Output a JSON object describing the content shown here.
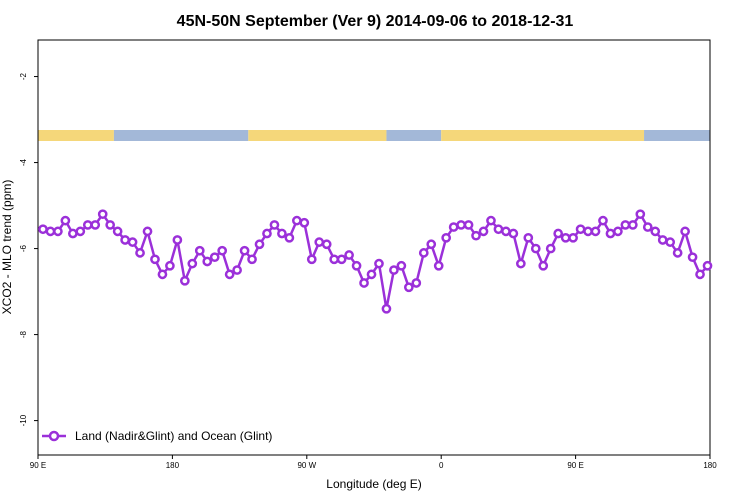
{
  "chart_data": {
    "type": "line",
    "title": "45N-50N September (Ver 9)   2014-09-06 to 2018-12-31",
    "xlabel": "Longitude (deg E)",
    "ylabel": "XCO2 - MLO trend (ppm)",
    "xlim": [
      -90,
      180
    ],
    "ylim": [
      -10.8,
      -1.15
    ],
    "x_ticks": [
      {
        "value": -90,
        "label": "90 E"
      },
      {
        "value": -36,
        "label": "180"
      },
      {
        "value": 18,
        "label": "90 W"
      },
      {
        "value": 72,
        "label": "0"
      },
      {
        "value": 126,
        "label": "90 E"
      },
      {
        "value": 180,
        "label": "180"
      }
    ],
    "y_ticks": [
      -2,
      -4,
      -6,
      -8,
      -10
    ],
    "legend": {
      "position": "bottom-left"
    },
    "grid": false,
    "surface_band": {
      "land_color": "#f5d77a",
      "ocean_color": "#a3b8d8",
      "segments": [
        {
          "type": "land",
          "x0": -90,
          "x1": -59.5
        },
        {
          "type": "ocean",
          "x0": -59.5,
          "x1": -5.5
        },
        {
          "type": "land",
          "x0": -5.5,
          "x1": 50
        },
        {
          "type": "ocean",
          "x0": 50,
          "x1": 72
        },
        {
          "type": "land",
          "x0": 72,
          "x1": 153.5
        },
        {
          "type": "ocean",
          "x0": 153.5,
          "x1": 180
        }
      ]
    },
    "series": [
      {
        "name": "Land (Nadir&Glint) and Ocean (Glint)",
        "color": "#9b30d9",
        "x": [
          -88,
          -85,
          -82,
          -79,
          -76,
          -73,
          -70,
          -67,
          -64,
          -61,
          -58,
          -55,
          -52,
          -49,
          -46,
          -43,
          -40,
          -37,
          -34,
          -31,
          -28,
          -25,
          -22,
          -19,
          -16,
          -13,
          -10,
          -7,
          -4,
          -1,
          2,
          5,
          8,
          11,
          14,
          17,
          20,
          23,
          26,
          29,
          32,
          35,
          38,
          41,
          44,
          47,
          50,
          53,
          56,
          59,
          62,
          65,
          68,
          71,
          74,
          77,
          80,
          83,
          86,
          89,
          92,
          95,
          98,
          101,
          104,
          107,
          110,
          113,
          116,
          119,
          122,
          125,
          128,
          131,
          134,
          137,
          140,
          143,
          146,
          149,
          152,
          155,
          158,
          161,
          164,
          167,
          170,
          173,
          176,
          179
        ],
        "y": [
          -5.55,
          -5.6,
          -5.6,
          -5.35,
          -5.65,
          -5.6,
          -5.45,
          -5.45,
          -5.2,
          -5.45,
          -5.6,
          -5.8,
          -5.85,
          -6.1,
          -5.6,
          -6.25,
          -6.6,
          -6.4,
          -5.8,
          -6.75,
          -6.35,
          -6.05,
          -6.3,
          -6.2,
          -6.05,
          -6.6,
          -6.5,
          -6.05,
          -6.25,
          -5.9,
          -5.65,
          -5.45,
          -5.65,
          -5.75,
          -5.35,
          -5.4,
          -6.25,
          -5.85,
          -5.9,
          -6.25,
          -6.25,
          -6.15,
          -6.4,
          -6.8,
          -6.6,
          -6.35,
          -7.4,
          -6.5,
          -6.4,
          -6.9,
          -6.8,
          -6.1,
          -5.9,
          -6.4,
          -5.75,
          -5.5,
          -5.45,
          -5.45,
          -5.7,
          -5.6,
          -5.35,
          -5.55,
          -5.6,
          -5.65,
          -6.35,
          -5.75,
          -6.0,
          -6.4,
          -6.0,
          -5.65,
          -5.75,
          -5.75,
          -5.55,
          -5.6,
          -5.6,
          -5.35,
          -5.65,
          -5.6,
          -5.45,
          -5.45,
          -5.2,
          -5.5,
          -5.6,
          -5.8,
          -5.85,
          -6.1,
          -5.6,
          -6.2,
          -6.6,
          -6.4
        ]
      }
    ]
  }
}
